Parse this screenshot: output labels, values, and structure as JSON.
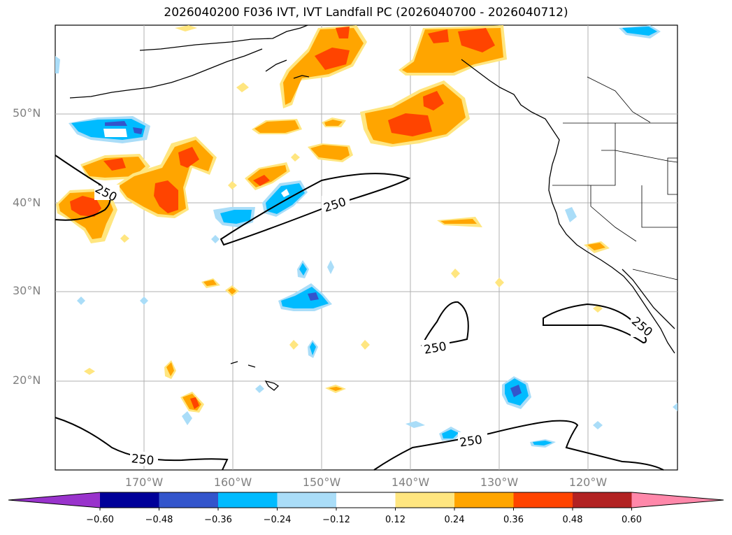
{
  "title": "2026040200 F036 IVT, IVT Landfall PC (2026040700 - 2026040712)",
  "lat_labels": [
    "50°N",
    "40°N",
    "30°N",
    "20°N"
  ],
  "lon_labels": [
    "170°W",
    "160°W",
    "150°W",
    "140°W",
    "130°W",
    "120°W"
  ],
  "contour_value_label": "250",
  "colorbar": {
    "ticks": [
      "−0.60",
      "−0.48",
      "−0.36",
      "−0.24",
      "−0.12",
      "0.12",
      "0.24",
      "0.36",
      "0.48",
      "0.60"
    ],
    "colors": [
      "#9933cc",
      "#000099",
      "#3355cc",
      "#00bbff",
      "#aaddf8",
      "#ffffff",
      "#ffe680",
      "#ffa500",
      "#ff4400",
      "#b22222",
      "#ff88aa"
    ]
  },
  "colors": {
    "land_line": "#000000",
    "grid": "#b0b0b0",
    "label_gray": "#808080",
    "pos_light": "#ffe680",
    "pos_mid": "#ffa500",
    "pos_strong": "#ff4400",
    "neg_light": "#aaddf8",
    "neg_mid": "#00bbff",
    "neg_strong": "#3355cc"
  }
}
